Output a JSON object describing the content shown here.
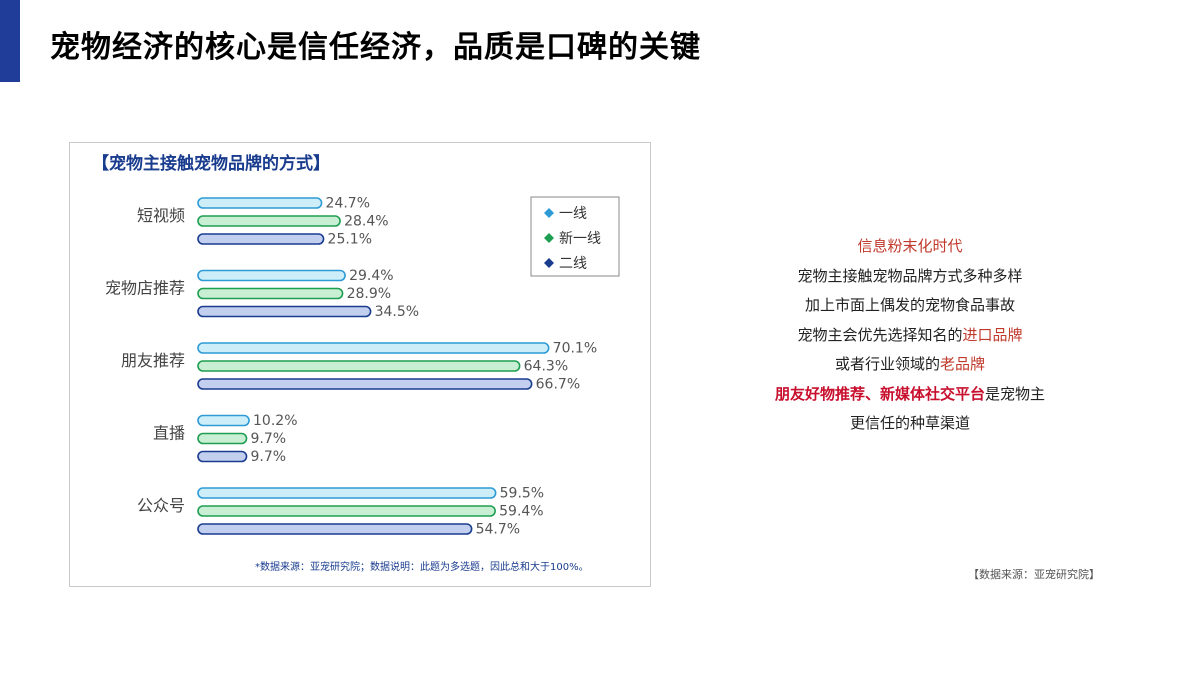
{
  "slide": {
    "title": "宠物经济的核心是信任经济，品质是口碑的关键"
  },
  "chart_data": {
    "type": "bar",
    "orientation": "horizontal",
    "title": "【宠物主接触宠物品牌的方式】",
    "categories": [
      "短视频",
      "宠物店推荐",
      "朋友推荐",
      "直播",
      "公众号"
    ],
    "series": [
      {
        "name": "一线",
        "color": "#2e9bd6",
        "values": [
          24.7,
          29.4,
          70.1,
          10.2,
          59.5
        ]
      },
      {
        "name": "新一线",
        "color": "#1e9e50",
        "values": [
          28.4,
          28.9,
          64.3,
          9.7,
          59.4
        ]
      },
      {
        "name": "二线",
        "color": "#1a3c8f",
        "values": [
          25.1,
          34.5,
          66.7,
          9.7,
          54.7
        ]
      }
    ],
    "bar_fill": [
      "#cdeef8",
      "#c8eed3",
      "#c3cfee"
    ],
    "value_suffix": "%",
    "xlim": [
      0,
      100
    ],
    "legend_position": "top-right",
    "footnote": "*数据来源：亚宠研究院；数据说明：此题为多选题，因此总和大于100%。"
  },
  "side_text": {
    "line1": "信息粉末化时代",
    "line2": "宠物主接触宠物品牌方式多种多样",
    "line3": "加上市面上偶发的宠物食品事故",
    "line4_prefix": "宠物主会优先选择知名的",
    "line4_highlight": "进口品牌",
    "line5_prefix": "或者行业领域的",
    "line5_highlight": "老品牌",
    "line6_highlight": "朋友好物推荐、新媒体社交平台",
    "line6_suffix": "是宠物主",
    "line7": "更信任的种草渠道"
  },
  "source_note": "【数据来源：亚宠研究院】"
}
